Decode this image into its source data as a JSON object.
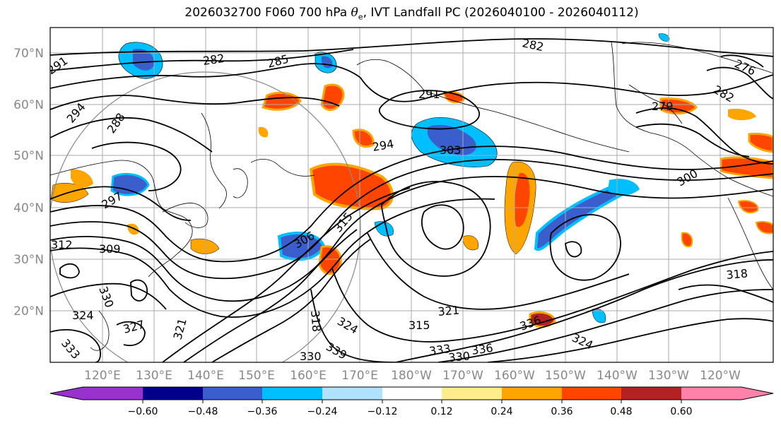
{
  "figure": {
    "title_prefix": "2026032700 F060 700 hPa ",
    "title_theta": "θ",
    "title_sub": "e",
    "title_suffix": ", IVT Landfall PC (2026040100 - 2026040112)"
  },
  "map": {
    "lat_labels": [
      "70°N",
      "60°N",
      "50°N",
      "40°N",
      "30°N",
      "20°N"
    ],
    "lon_labels": [
      "120°E",
      "130°E",
      "140°E",
      "150°E",
      "160°E",
      "170°E",
      "180°W",
      "170°W",
      "160°W",
      "150°W",
      "140°W",
      "130°W",
      "120°W"
    ],
    "contour_labels": [
      "282",
      "285",
      "282",
      "276",
      "282",
      "291",
      "291",
      "294",
      "288",
      "279",
      "294",
      "303",
      "300",
      "297",
      "309",
      "312",
      "306",
      "315",
      "330",
      "324",
      "327",
      "321",
      "333",
      "318",
      "324",
      "315",
      "321",
      "336",
      "339",
      "330",
      "333",
      "336",
      "330",
      "324",
      "318"
    ]
  },
  "colorbar": {
    "tick_labels": [
      "−0.60",
      "−0.48",
      "−0.36",
      "−0.24",
      "−0.12",
      "0.12",
      "0.24",
      "0.36",
      "0.48",
      "0.60"
    ],
    "colors": [
      "#9932cc",
      "#00008b",
      "#3a5fcd",
      "#00bfff",
      "#b0e2ff",
      "#ffffff",
      "#ffec8b",
      "#ffa500",
      "#ff4500",
      "#b22222",
      "#ff82ab"
    ]
  },
  "colors": {
    "contour": "#000000",
    "grid": "#aaaaaa",
    "ring": "#888888"
  }
}
